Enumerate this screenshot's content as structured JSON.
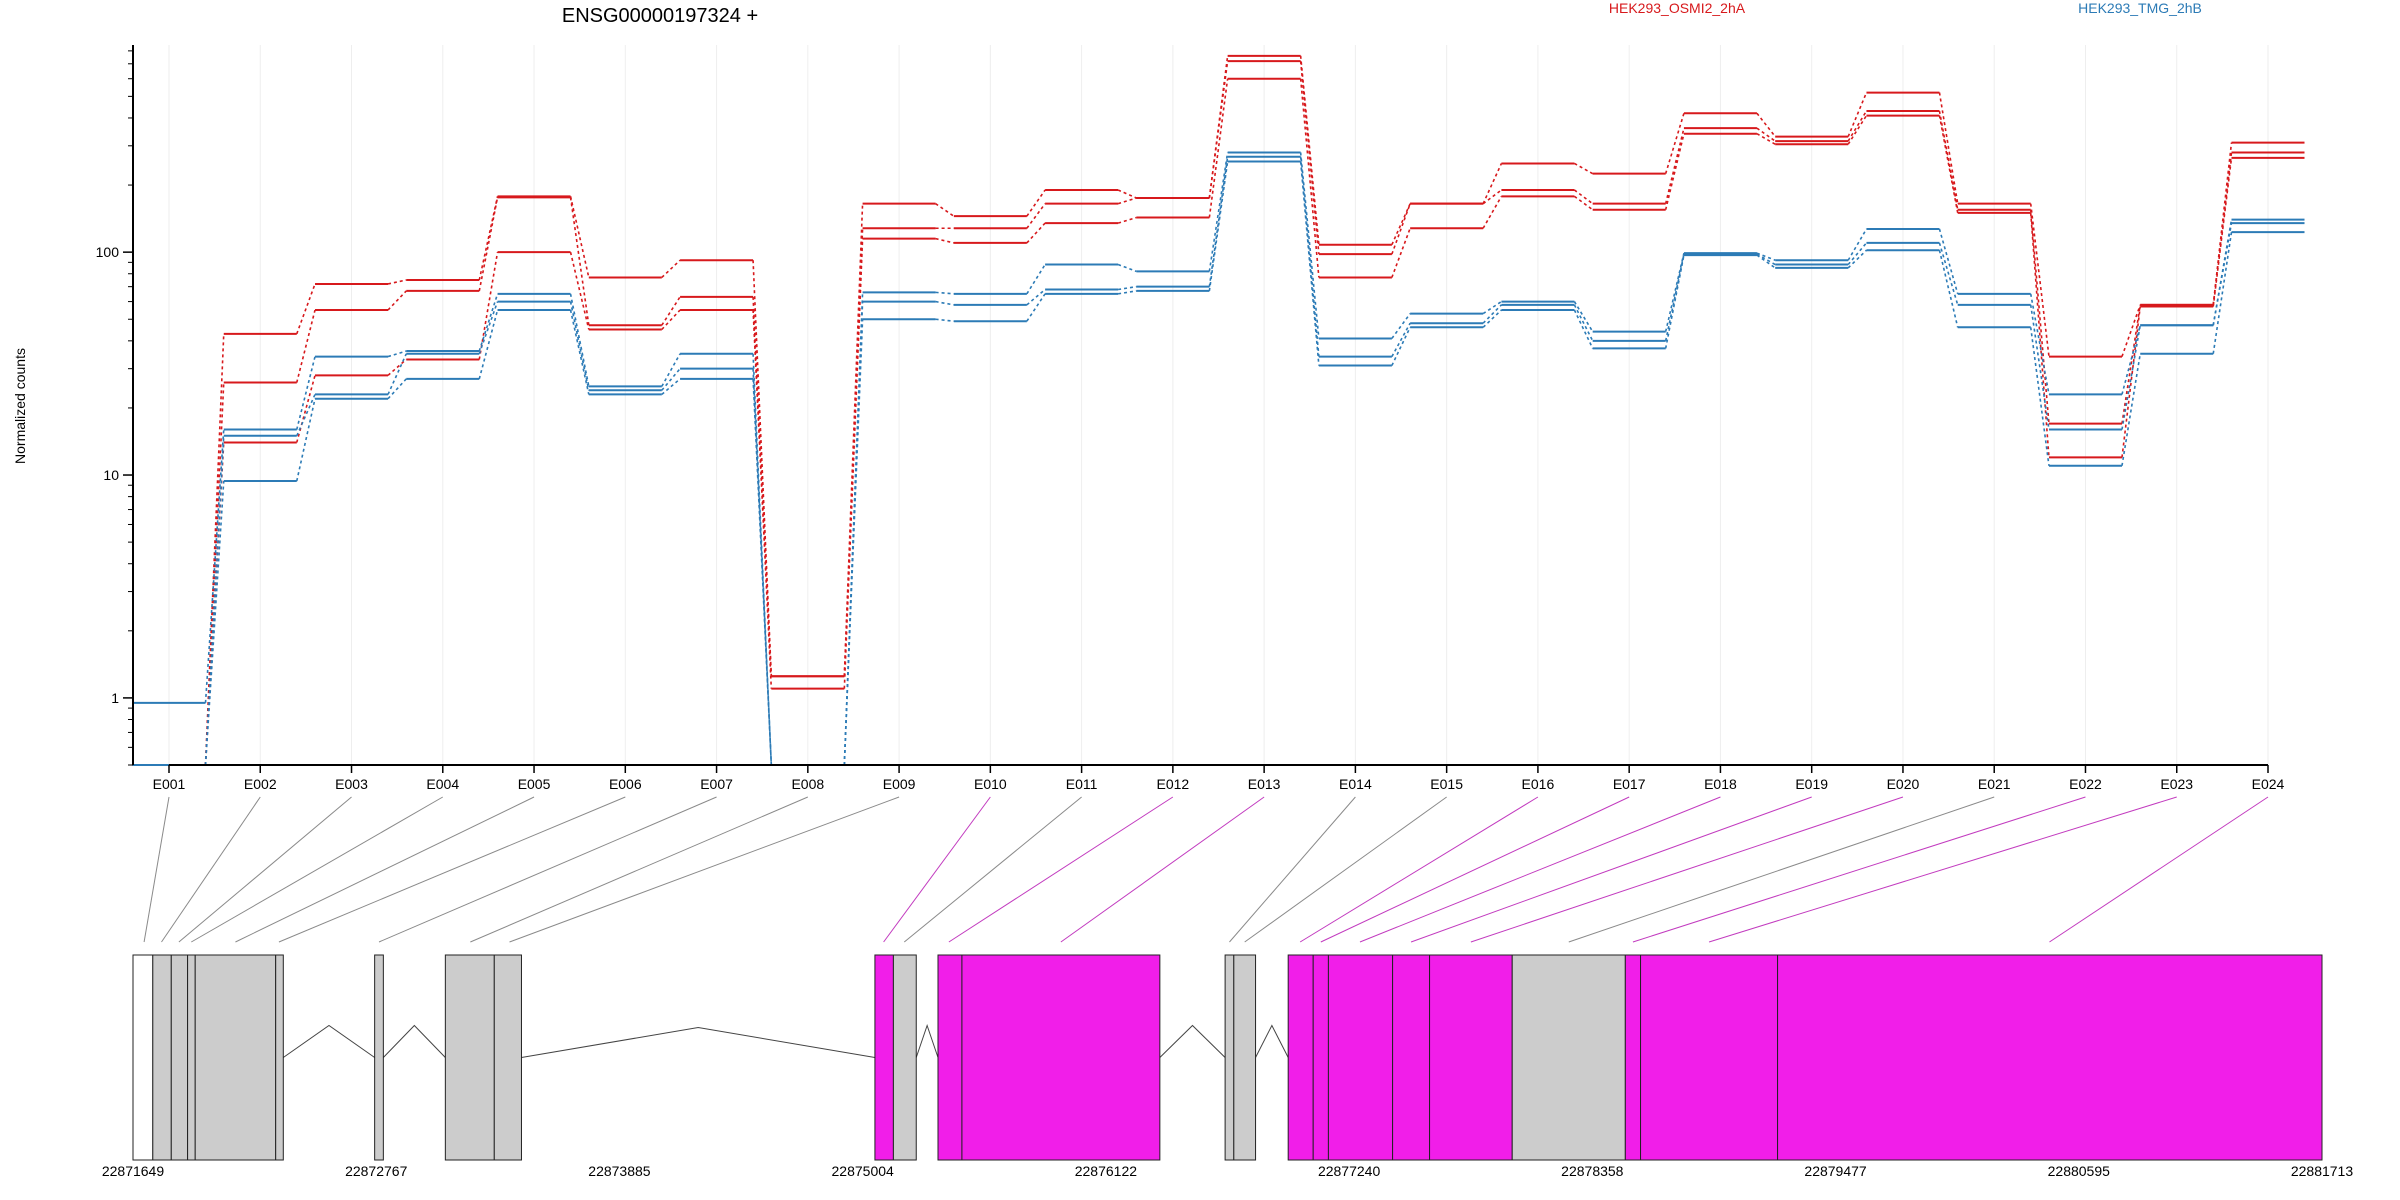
{
  "chart_data": {
    "type": "line",
    "title": "ENSG00000197324 +",
    "ylabel": "Normalized counts",
    "yscale": "log",
    "ylim": [
      0.5,
      850
    ],
    "y_ticks": [
      {
        "value": 1,
        "label": "1"
      },
      {
        "value": 10,
        "label": "10"
      },
      {
        "value": 100,
        "label": "100"
      }
    ],
    "grid": "vertical",
    "legend_position": "top",
    "categories": [
      "E001",
      "E002",
      "E003",
      "E004",
      "E005",
      "E006",
      "E007",
      "E008",
      "E009",
      "E010",
      "E011",
      "E012",
      "E013",
      "E014",
      "E015",
      "E016",
      "E017",
      "E018",
      "E019",
      "E020",
      "E021",
      "E022",
      "E023",
      "E024"
    ],
    "legend": [
      {
        "name": "HEK293_OSMI2_2hA",
        "color": "#d7191c"
      },
      {
        "name": "HEK293_TMG_2hB",
        "color": "#2c7bb6"
      }
    ],
    "series": [
      {
        "group": "HEK293_OSMI2_2hA",
        "color": "#d7191c",
        "values": [
          0.5,
          43,
          72,
          75,
          178,
          77,
          92,
          1.25,
          165,
          145,
          190,
          175,
          760,
          108,
          165,
          250,
          225,
          420,
          330,
          520,
          165,
          34,
          58,
          310
        ]
      },
      {
        "group": "HEK293_OSMI2_2hA",
        "color": "#d7191c",
        "values": [
          0.5,
          26,
          55,
          67,
          176,
          47,
          63,
          1.25,
          128,
          128,
          165,
          175,
          720,
          98,
          165,
          190,
          165,
          360,
          315,
          430,
          155,
          17,
          58,
          280
        ]
      },
      {
        "group": "HEK293_OSMI2_2hA",
        "color": "#d7191c",
        "values": [
          0.5,
          14,
          28,
          33,
          100,
          45,
          55,
          1.1,
          115,
          110,
          135,
          143,
          600,
          77,
          128,
          178,
          155,
          340,
          305,
          410,
          150,
          12,
          57,
          265
        ]
      },
      {
        "group": "HEK293_TMG_2hB",
        "color": "#2c7bb6",
        "values": [
          0.95,
          16,
          34,
          36,
          65,
          25,
          35,
          0.5,
          66,
          65,
          88,
          82,
          280,
          41,
          53,
          60,
          44,
          99,
          92,
          127,
          65,
          23,
          47,
          140
        ]
      },
      {
        "group": "HEK293_TMG_2hB",
        "color": "#2c7bb6",
        "values": [
          0.5,
          15,
          23,
          35,
          60,
          24,
          30,
          0.5,
          60,
          58,
          68,
          70,
          268,
          34,
          48,
          58,
          40,
          98,
          88,
          110,
          58,
          16,
          47,
          135
        ]
      },
      {
        "group": "HEK293_TMG_2hB",
        "color": "#2c7bb6",
        "values": [
          0.5,
          9.4,
          22,
          27,
          55,
          23,
          27,
          0.5,
          50,
          49,
          65,
          67,
          255,
          31,
          46,
          55,
          37,
          97,
          85,
          102,
          46,
          11,
          35,
          123
        ]
      }
    ],
    "gene_model": {
      "coord_ticks": [
        "22871649",
        "22872767",
        "22873885",
        "22875004",
        "22876122",
        "22877240",
        "22878358",
        "22879477",
        "22880595",
        "22881713"
      ],
      "coord_range": [
        22871649,
        22881713
      ],
      "exon_color": "#cccccc",
      "highlight_color": "#f11ee9",
      "exon_blocks": [
        {
          "start": 22871649,
          "end": 22871740,
          "fill": "none"
        },
        {
          "start": 22871740,
          "end": 22871825,
          "fill": "#cccccc"
        },
        {
          "start": 22871825,
          "end": 22871900,
          "fill": "#cccccc"
        },
        {
          "start": 22871900,
          "end": 22871935,
          "fill": "#cccccc"
        },
        {
          "start": 22871935,
          "end": 22872305,
          "fill": "#cccccc"
        },
        {
          "start": 22872305,
          "end": 22872340,
          "fill": "#cccccc"
        },
        {
          "start": 22872760,
          "end": 22872800,
          "fill": "#cccccc"
        },
        {
          "start": 22873085,
          "end": 22873310,
          "fill": "#cccccc"
        },
        {
          "start": 22873310,
          "end": 22873435,
          "fill": "#cccccc"
        },
        {
          "start": 22875060,
          "end": 22875145,
          "fill": "#f11ee9"
        },
        {
          "start": 22875145,
          "end": 22875250,
          "fill": "#cccccc"
        },
        {
          "start": 22875350,
          "end": 22875460,
          "fill": "#f11ee9"
        },
        {
          "start": 22875460,
          "end": 22876370,
          "fill": "#f11ee9"
        },
        {
          "start": 22876670,
          "end": 22876710,
          "fill": "#cccccc"
        },
        {
          "start": 22876710,
          "end": 22876810,
          "fill": "#cccccc"
        },
        {
          "start": 22876960,
          "end": 22877075,
          "fill": "#f11ee9"
        },
        {
          "start": 22877075,
          "end": 22877145,
          "fill": "#f11ee9"
        },
        {
          "start": 22877145,
          "end": 22877440,
          "fill": "#f11ee9"
        },
        {
          "start": 22877440,
          "end": 22877610,
          "fill": "#f11ee9"
        },
        {
          "start": 22877610,
          "end": 22877990,
          "fill": "#f11ee9"
        },
        {
          "start": 22877990,
          "end": 22878510,
          "fill": "#cccccc"
        },
        {
          "start": 22878510,
          "end": 22878580,
          "fill": "#f11ee9"
        },
        {
          "start": 22878580,
          "end": 22879210,
          "fill": "#f11ee9"
        },
        {
          "start": 22879210,
          "end": 22881713,
          "fill": "#f11ee9"
        }
      ],
      "introns": [
        [
          22872340,
          22872760
        ],
        [
          22872800,
          22873085
        ],
        [
          22873435,
          22875060
        ],
        [
          22875250,
          22875350
        ],
        [
          22876370,
          22876670
        ],
        [
          22876810,
          22876960
        ]
      ],
      "exon_connectors": [
        {
          "exon": "E001",
          "coord": 22871700,
          "highlight": false
        },
        {
          "exon": "E002",
          "coord": 22871780,
          "highlight": false
        },
        {
          "exon": "E003",
          "coord": 22871860,
          "highlight": false
        },
        {
          "exon": "E004",
          "coord": 22871917,
          "highlight": false
        },
        {
          "exon": "E005",
          "coord": 22872120,
          "highlight": false
        },
        {
          "exon": "E006",
          "coord": 22872320,
          "highlight": false
        },
        {
          "exon": "E007",
          "coord": 22872780,
          "highlight": false
        },
        {
          "exon": "E008",
          "coord": 22873200,
          "highlight": false
        },
        {
          "exon": "E009",
          "coord": 22873380,
          "highlight": false
        },
        {
          "exon": "E010",
          "coord": 22875100,
          "highlight": true
        },
        {
          "exon": "E011",
          "coord": 22875195,
          "highlight": false
        },
        {
          "exon": "E012",
          "coord": 22875400,
          "highlight": true
        },
        {
          "exon": "E013",
          "coord": 22875915,
          "highlight": true
        },
        {
          "exon": "E014",
          "coord": 22876690,
          "highlight": false
        },
        {
          "exon": "E015",
          "coord": 22876760,
          "highlight": false
        },
        {
          "exon": "E016",
          "coord": 22877015,
          "highlight": true
        },
        {
          "exon": "E017",
          "coord": 22877110,
          "highlight": true
        },
        {
          "exon": "E018",
          "coord": 22877290,
          "highlight": true
        },
        {
          "exon": "E019",
          "coord": 22877525,
          "highlight": true
        },
        {
          "exon": "E020",
          "coord": 22877800,
          "highlight": true
        },
        {
          "exon": "E021",
          "coord": 22878250,
          "highlight": false
        },
        {
          "exon": "E022",
          "coord": 22878545,
          "highlight": true
        },
        {
          "exon": "E023",
          "coord": 22878895,
          "highlight": true
        },
        {
          "exon": "E024",
          "coord": 22880460,
          "highlight": true
        }
      ]
    }
  }
}
